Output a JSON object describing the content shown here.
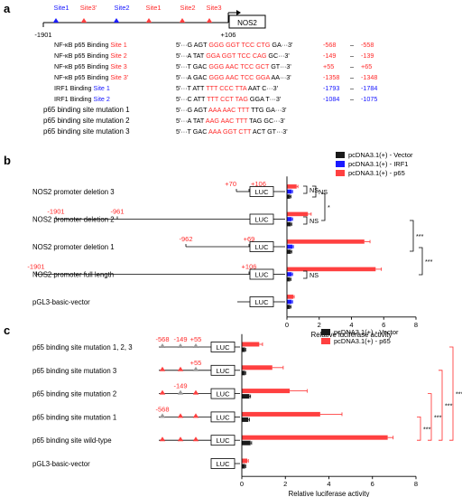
{
  "colors": {
    "black": "#000000",
    "blue": "#1a1aff",
    "red": "#ff4040",
    "gray": "#9a9a9a",
    "text_red": "#ff2a2a",
    "text_blue": "#1515ff"
  },
  "panel_a": {
    "label": "a",
    "site_labels": [
      {
        "text": "Site1",
        "color": "blue"
      },
      {
        "text": "Site3'",
        "color": "red"
      },
      {
        "text": "Site2",
        "color": "blue"
      },
      {
        "text": "Site1",
        "color": "red"
      },
      {
        "text": "Site2",
        "color": "red"
      },
      {
        "text": "Site3",
        "color": "red"
      }
    ],
    "gene_label": "NOS2",
    "left_coord": "-1901",
    "right_coord": "+106",
    "rows": [
      {
        "name_black": "NF-κB p65 Binding ",
        "name_color": "Site 1",
        "name_colored": "red",
        "pre": "5'···G AGT ",
        "core": "GGG GGT TCC CTG",
        "post": " GA···3'",
        "coord1": "-568",
        "coord2": "-558",
        "coord_color": "red"
      },
      {
        "name_black": "NF-κB p65 Binding ",
        "name_color": "Site 2",
        "name_colored": "red",
        "pre": "5'···A TAT ",
        "core": "GGA GGT TCC CAG",
        "post": " GC···3'",
        "coord1": "-149",
        "coord2": "-139",
        "coord_color": "red"
      },
      {
        "name_black": "NF-κB p65 Binding ",
        "name_color": "Site 3",
        "name_colored": "red",
        "pre": "5'···T GAC ",
        "core": "GGG AAC TCC GCT",
        "post": " GT···3'",
        "coord1": "+55",
        "coord2": "+65",
        "coord_color": "red"
      },
      {
        "name_black": "NF-κB p65 Binding ",
        "name_color": "Site 3'",
        "name_colored": "red",
        "pre": "5'···A GAC ",
        "core": "GGG AAC TCC GGA",
        "post": " AA···3'",
        "coord1": "-1358",
        "coord2": "-1348",
        "coord_color": "red"
      },
      {
        "name_black": "IRF1 Binding ",
        "name_color": "Site 1",
        "name_colored": "blue",
        "pre": "5'···T ATT ",
        "core": "TTT CCC TTA",
        "post": " AAT C···3'",
        "coord1": "-1793",
        "coord2": "-1784",
        "coord_color": "blue"
      },
      {
        "name_black": "IRF1 Binding ",
        "name_color": "Site 2",
        "name_colored": "blue",
        "pre": "5'···C ATT ",
        "core": "TTT CCT TAG",
        "post": " GGA T···3'",
        "coord1": "-1084",
        "coord2": "-1075",
        "coord_color": "blue"
      },
      {
        "name_black": "p65 binding site mutation 1",
        "name_color": "",
        "name_colored": "red",
        "pre": "5'···G AGT ",
        "core": "AAA AAC TTT",
        "post": " TTG GA···3'",
        "coord1": "",
        "coord2": "",
        "coord_color": "red"
      },
      {
        "name_black": "p65 binding site mutation 2",
        "name_color": "",
        "name_colored": "red",
        "pre": "5'···A TAT ",
        "core": "AAG AAC TTT",
        "post": " TAG GC···3'",
        "coord1": "",
        "coord2": "",
        "coord_color": "red"
      },
      {
        "name_black": "p65 binding site mutation 3",
        "name_color": "",
        "name_colored": "red",
        "pre": "5'···T GAC ",
        "core": "AAA GGT CTT",
        "post": " ACT GT···3'",
        "coord1": "",
        "coord2": "",
        "coord_color": "red"
      }
    ],
    "dash": "–"
  },
  "chart_data": [
    {
      "type": "bar",
      "panel": "b",
      "orientation": "horizontal",
      "categories": [
        "NOS2 promoter deletion 3",
        "NOS2 promoter deletion 2",
        "NOS2 promoter deletion 1",
        "NOS2 promoter full length",
        "pGL3-basic-vector"
      ],
      "series": [
        {
          "name": "pcDNA3.1(+) - Vector",
          "color": "black",
          "values": [
            0.2,
            0.25,
            0.25,
            0.2,
            0.2
          ],
          "errors": [
            0.05,
            0.05,
            0.05,
            0.05,
            0.05
          ]
        },
        {
          "name": "pcDNA3.1(+) - IRF1",
          "color": "blue",
          "values": [
            0.3,
            0.3,
            0.35,
            0.3,
            0.3
          ],
          "errors": [
            0.05,
            0.05,
            0.05,
            0.05,
            0.05
          ]
        },
        {
          "name": "pcDNA3.1(+) - p65",
          "color": "red",
          "values": [
            0.6,
            1.3,
            4.8,
            5.5,
            0.4
          ],
          "errors": [
            0.08,
            0.2,
            0.35,
            0.35,
            0.05
          ]
        }
      ],
      "construct_coords": [
        [
          "+70",
          "+106"
        ],
        [
          "-1901",
          "-961"
        ],
        [
          "-962",
          "+69"
        ],
        [
          "-1901",
          "+106"
        ],
        [
          "",
          ""
        ]
      ],
      "construct_label": "LUC",
      "xlabel": "Relative luciferase activity",
      "xlim": [
        0,
        8
      ],
      "xticks": [
        "0",
        "2",
        "4",
        "6",
        "8"
      ],
      "significance": [
        "NS",
        "NS",
        "*",
        "NS",
        "***",
        "NS",
        "***"
      ],
      "legend_position": "top-right"
    },
    {
      "type": "bar",
      "panel": "c",
      "orientation": "horizontal",
      "categories": [
        "p65 binding site mutation 1, 2, 3",
        "p65 binding site mutation 3",
        "p65 binding site mutation 2",
        "p65 binding site mutation 1",
        "p65 binding site wild-type",
        "pGL3-basic-vector"
      ],
      "series": [
        {
          "name": "pcDNA3.1(+) - Vector",
          "color": "black",
          "values": [
            0.15,
            0.15,
            0.35,
            0.3,
            0.4,
            0.15
          ],
          "errors": [
            0.03,
            0.03,
            0.05,
            0.05,
            0.05,
            0.03
          ]
        },
        {
          "name": "pcDNA3.1(+) - p65",
          "color": "red",
          "values": [
            0.8,
            1.4,
            2.2,
            3.6,
            6.7,
            0.25
          ],
          "errors": [
            0.15,
            0.5,
            0.8,
            1.0,
            0.25,
            0.05
          ]
        }
      ],
      "construct_marks": [
        [
          "-568",
          "-149",
          "+55"
        ],
        [
          "+55"
        ],
        [
          "-149"
        ],
        [
          "-568"
        ],
        [],
        []
      ],
      "construct_label": "LUC",
      "xlabel": "Relative luciferase activity",
      "xlim": [
        0,
        8
      ],
      "xticks": [
        "0",
        "2",
        "4",
        "6",
        "8"
      ],
      "significance": [
        "***",
        "***",
        "***",
        "***"
      ],
      "legend_position": "top-right"
    }
  ],
  "panel_labels": {
    "b": "b",
    "c": "c"
  }
}
